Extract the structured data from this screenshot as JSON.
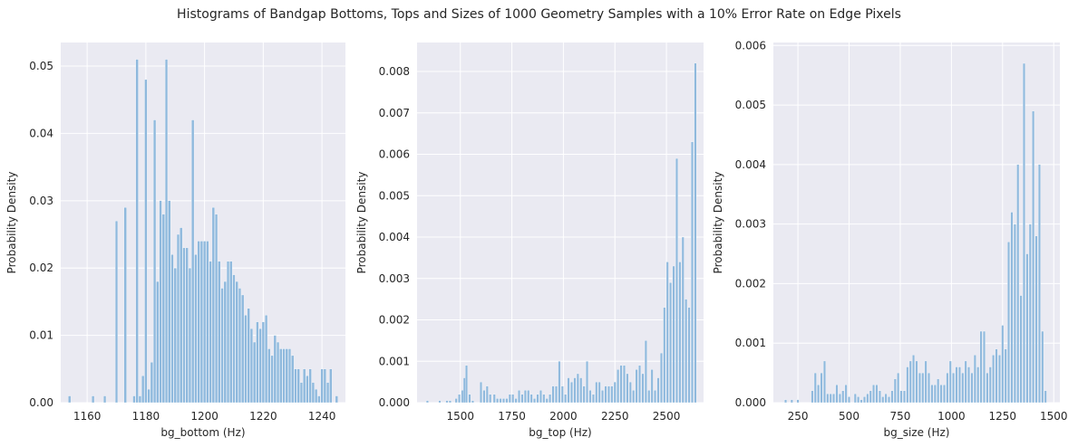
{
  "suptitle": "Histograms of Bandgap Bottoms, Tops and Sizes of 1000 Geometry Samples with a 10% Error Rate on Edge Pixels",
  "style": {
    "background": "#eaeaf2",
    "bar_color": "#8fb9dd",
    "grid_color": "#ffffff"
  },
  "chart_data": [
    {
      "type": "bar",
      "title": "",
      "xlabel": "bg_bottom (Hz)",
      "ylabel": "Probability Density",
      "xlim": [
        1151,
        1248
      ],
      "ylim": [
        0,
        0.0535
      ],
      "xticks": [
        1160,
        1180,
        1200,
        1220,
        1240
      ],
      "yticks": [
        0.0,
        0.01,
        0.02,
        0.03,
        0.04,
        0.05
      ],
      "ytick_labels": [
        "0.00",
        "0.01",
        "0.02",
        "0.03",
        "0.04",
        "0.05"
      ],
      "bin_width": 0.85,
      "x": [
        1154,
        1162,
        1166,
        1170,
        1173,
        1176,
        1177,
        1178,
        1179,
        1180,
        1181,
        1182,
        1183,
        1184,
        1185,
        1186,
        1187,
        1188,
        1189,
        1190,
        1191,
        1192,
        1193,
        1194,
        1195,
        1196,
        1197,
        1198,
        1199,
        1200,
        1201,
        1202,
        1203,
        1204,
        1205,
        1206,
        1207,
        1208,
        1209,
        1210,
        1211,
        1212,
        1213,
        1214,
        1215,
        1216,
        1217,
        1218,
        1219,
        1220,
        1221,
        1222,
        1223,
        1224,
        1225,
        1226,
        1227,
        1228,
        1229,
        1230,
        1231,
        1232,
        1233,
        1234,
        1235,
        1236,
        1237,
        1238,
        1239,
        1240,
        1241,
        1242,
        1243,
        1245
      ],
      "values": [
        0.001,
        0.001,
        0.001,
        0.027,
        0.029,
        0.001,
        0.051,
        0.001,
        0.004,
        0.048,
        0.002,
        0.006,
        0.042,
        0.018,
        0.03,
        0.028,
        0.051,
        0.03,
        0.022,
        0.02,
        0.025,
        0.026,
        0.023,
        0.023,
        0.02,
        0.042,
        0.022,
        0.024,
        0.024,
        0.024,
        0.024,
        0.021,
        0.029,
        0.028,
        0.021,
        0.017,
        0.018,
        0.021,
        0.021,
        0.019,
        0.018,
        0.017,
        0.016,
        0.013,
        0.014,
        0.011,
        0.009,
        0.012,
        0.011,
        0.012,
        0.013,
        0.008,
        0.007,
        0.01,
        0.009,
        0.008,
        0.008,
        0.008,
        0.008,
        0.007,
        0.005,
        0.005,
        0.003,
        0.005,
        0.004,
        0.005,
        0.003,
        0.002,
        0.001,
        0.005,
        0.005,
        0.003,
        0.005,
        0.001
      ]
    },
    {
      "type": "bar",
      "title": "",
      "xlabel": "bg_top (Hz)",
      "ylabel": "Probability Density",
      "xlim": [
        1290,
        2680
      ],
      "ylim": [
        0,
        0.0087
      ],
      "xticks": [
        1500,
        1750,
        2000,
        2250,
        2500
      ],
      "yticks": [
        0.0,
        0.001,
        0.002,
        0.003,
        0.004,
        0.005,
        0.006,
        0.007,
        0.008
      ],
      "ytick_labels": [
        "0.000",
        "0.001",
        "0.002",
        "0.003",
        "0.004",
        "0.005",
        "0.006",
        "0.007",
        "0.008"
      ],
      "bin_width": 11,
      "x": [
        1340,
        1400,
        1435,
        1450,
        1480,
        1495,
        1510,
        1520,
        1530,
        1545,
        1560,
        1600,
        1615,
        1630,
        1645,
        1665,
        1680,
        1695,
        1710,
        1725,
        1740,
        1755,
        1770,
        1785,
        1800,
        1815,
        1830,
        1845,
        1860,
        1875,
        1890,
        1905,
        1920,
        1935,
        1950,
        1965,
        1980,
        1995,
        2010,
        2025,
        2040,
        2055,
        2070,
        2085,
        2100,
        2115,
        2130,
        2145,
        2160,
        2175,
        2190,
        2205,
        2220,
        2235,
        2250,
        2265,
        2280,
        2295,
        2310,
        2325,
        2340,
        2355,
        2370,
        2385,
        2400,
        2415,
        2430,
        2445,
        2460,
        2475,
        2490,
        2505,
        2520,
        2535,
        2550,
        2565,
        2580,
        2595,
        2610,
        2625,
        2640
      ],
      "values": [
        5e-05,
        5e-05,
        5e-05,
        5e-05,
        0.0001,
        0.0002,
        0.0003,
        0.0006,
        0.0009,
        0.0002,
        5e-05,
        0.0005,
        0.0003,
        0.0004,
        0.0002,
        0.0002,
        0.0001,
        0.0001,
        0.0001,
        0.0001,
        0.0002,
        0.0002,
        0.0001,
        0.0003,
        0.0002,
        0.0003,
        0.0003,
        0.0002,
        0.0001,
        0.0002,
        0.0003,
        0.0002,
        0.0001,
        0.0002,
        0.0004,
        0.0004,
        0.001,
        0.0004,
        0.0002,
        0.0006,
        0.0005,
        0.0006,
        0.0007,
        0.0006,
        0.0004,
        0.001,
        0.0003,
        0.0002,
        0.0005,
        0.0005,
        0.0003,
        0.0004,
        0.0004,
        0.0004,
        0.0005,
        0.0008,
        0.0009,
        0.0009,
        0.0007,
        0.0005,
        0.0003,
        0.0008,
        0.0009,
        0.0007,
        0.0015,
        0.0003,
        0.0008,
        0.0003,
        0.0006,
        0.0012,
        0.0023,
        0.0034,
        0.0029,
        0.0033,
        0.0059,
        0.0034,
        0.004,
        0.0025,
        0.0023,
        0.0063,
        0.0082
      ]
    },
    {
      "type": "bar",
      "title": "",
      "xlabel": "bg_size (Hz)",
      "ylabel": "Probability Density",
      "xlim": [
        130,
        1530
      ],
      "ylim": [
        0,
        0.00605
      ],
      "xticks": [
        250,
        500,
        750,
        1000,
        1250,
        1500
      ],
      "yticks": [
        0.0,
        0.001,
        0.002,
        0.003,
        0.004,
        0.005,
        0.006
      ],
      "ytick_labels": [
        "0.000",
        "0.001",
        "0.002",
        "0.003",
        "0.004",
        "0.005",
        "0.006"
      ],
      "bin_width": 11,
      "x": [
        190,
        220,
        250,
        320,
        335,
        350,
        365,
        380,
        395,
        410,
        425,
        440,
        455,
        470,
        485,
        500,
        530,
        545,
        560,
        575,
        590,
        605,
        620,
        635,
        650,
        665,
        680,
        695,
        710,
        725,
        740,
        755,
        770,
        785,
        800,
        815,
        830,
        845,
        860,
        875,
        890,
        905,
        920,
        935,
        950,
        965,
        980,
        995,
        1010,
        1025,
        1040,
        1055,
        1070,
        1085,
        1100,
        1115,
        1130,
        1145,
        1160,
        1175,
        1190,
        1205,
        1220,
        1235,
        1250,
        1265,
        1280,
        1295,
        1310,
        1325,
        1340,
        1355,
        1370,
        1385,
        1400,
        1415,
        1430,
        1445,
        1460
      ],
      "values": [
        5e-05,
        5e-05,
        5e-05,
        0.0002,
        0.0005,
        0.0003,
        0.0005,
        0.0007,
        0.00015,
        0.00015,
        0.00015,
        0.0003,
        0.00015,
        0.0002,
        0.0003,
        0.0001,
        0.00015,
        0.0001,
        5e-05,
        0.0001,
        0.00015,
        0.0002,
        0.0003,
        0.0003,
        0.0002,
        0.0001,
        0.00015,
        0.0001,
        0.0002,
        0.0004,
        0.0005,
        0.0002,
        0.0002,
        0.0006,
        0.0007,
        0.0008,
        0.0007,
        0.0005,
        0.0005,
        0.0007,
        0.0005,
        0.0003,
        0.0003,
        0.0004,
        0.0003,
        0.0003,
        0.0005,
        0.0007,
        0.0005,
        0.0006,
        0.0006,
        0.0005,
        0.0007,
        0.0006,
        0.0005,
        0.0008,
        0.0006,
        0.0012,
        0.0012,
        0.0005,
        0.0006,
        0.0008,
        0.0009,
        0.0008,
        0.0013,
        0.0009,
        0.0027,
        0.0032,
        0.003,
        0.004,
        0.0018,
        0.0057,
        0.0025,
        0.003,
        0.0049,
        0.0028,
        0.004,
        0.0012,
        0.0002
      ]
    }
  ]
}
